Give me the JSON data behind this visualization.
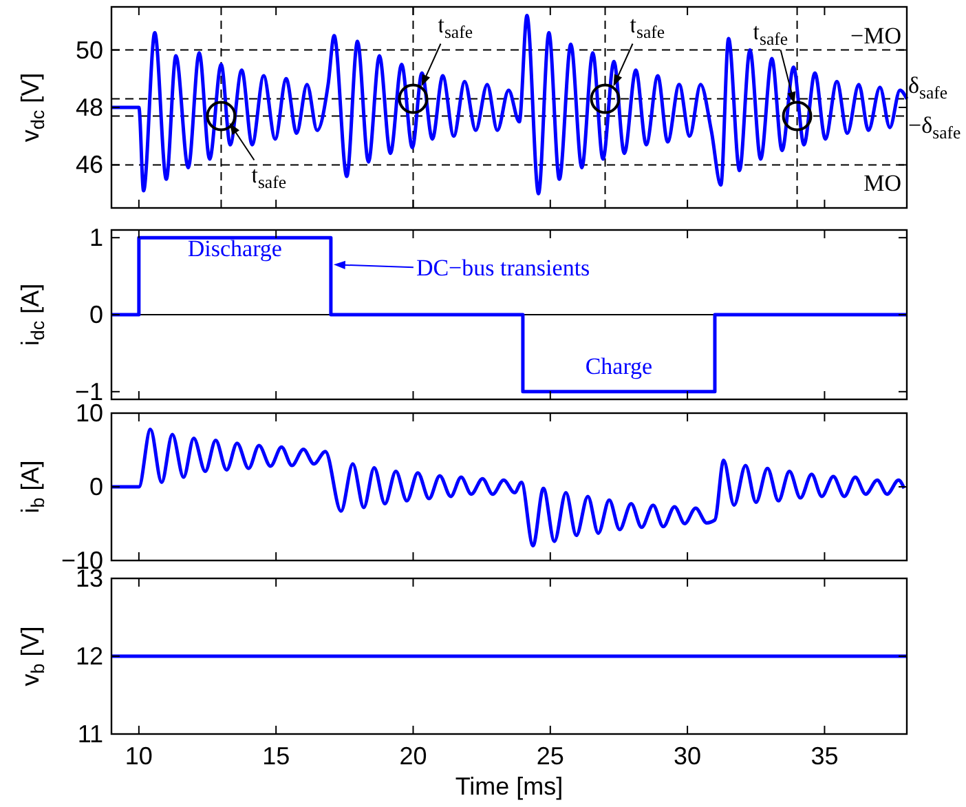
{
  "chart_data": [
    {
      "type": "line",
      "ylabel": "v$_{dc}$ [V]",
      "xlim": [
        9,
        38
      ],
      "xticks": [
        10,
        15,
        20,
        25,
        30,
        35
      ],
      "ylim": [
        44.5,
        51.5
      ],
      "yticks": [
        46,
        48,
        50
      ],
      "tick_labels": "y",
      "line_style": "solid",
      "series": [
        {
          "color": "#0000ff",
          "x": [
            9,
            10,
            10.17,
            10.58,
            11.0,
            11.35,
            11.8,
            12.2,
            12.58,
            13.0,
            13.33,
            13.75,
            14.13,
            14.55,
            14.97,
            15.37,
            15.75,
            16.13,
            16.5,
            16.9,
            17.12,
            17.58,
            17.97,
            18.37,
            18.77,
            19.17,
            19.58,
            19.97,
            20.32,
            20.7,
            21.08,
            21.48,
            21.88,
            22.28,
            22.7,
            23.07,
            23.48,
            23.87,
            24.15,
            24.57,
            24.95,
            25.33,
            25.75,
            26.15,
            26.55,
            26.92,
            27.32,
            27.7,
            28.12,
            28.5,
            28.92,
            29.28,
            29.7,
            30.08,
            30.48,
            30.87,
            31.22,
            31.5,
            31.9,
            32.28,
            32.67,
            33.08,
            33.45,
            33.87,
            34.25,
            34.65,
            35.03,
            35.45,
            35.83,
            36.25,
            36.6,
            37.02,
            37.38,
            37.75,
            38
          ],
          "values": [
            48,
            48,
            45.1,
            50.6,
            45.5,
            49.8,
            45.9,
            49.9,
            46.2,
            49.5,
            46.7,
            49.3,
            46.7,
            49.1,
            46.9,
            49.0,
            47.1,
            48.8,
            47.2,
            48.8,
            50.5,
            45.6,
            50.3,
            46.1,
            49.8,
            46.4,
            49.5,
            46.6,
            49.2,
            46.9,
            49.1,
            47.0,
            48.9,
            47.2,
            48.8,
            47.2,
            48.6,
            47.5,
            51.2,
            45.0,
            50.6,
            45.5,
            50.2,
            45.9,
            49.9,
            46.2,
            49.6,
            46.4,
            49.3,
            46.7,
            49.1,
            46.8,
            48.8,
            47.0,
            48.8,
            47.2,
            45.3,
            50.4,
            45.8,
            50.0,
            46.2,
            49.7,
            46.5,
            49.4,
            46.7,
            49.2,
            46.9,
            48.9,
            47.1,
            48.8,
            47.2,
            48.7,
            47.3,
            48.6,
            48.3
          ]
        }
      ],
      "ref_lines": [
        {
          "axis": "y",
          "value": 50,
          "label": "−MO",
          "line_style": "dashed",
          "color": "#000000"
        },
        {
          "axis": "y",
          "value": 48.3,
          "label": "δ$_{safe}$",
          "line_style": "dashed",
          "color": "#000000"
        },
        {
          "axis": "y",
          "value": 47.7,
          "label": "−δ$_{safe}$",
          "line_style": "dashed",
          "color": "#000000"
        },
        {
          "axis": "y",
          "value": 46,
          "label": "MO",
          "line_style": "dashed",
          "color": "#000000"
        },
        {
          "axis": "x",
          "value": 13,
          "line_style": "dashed",
          "color": "#000000"
        },
        {
          "axis": "x",
          "value": 20,
          "line_style": "dashed",
          "color": "#000000"
        },
        {
          "axis": "x",
          "value": 27,
          "line_style": "dashed",
          "color": "#000000"
        },
        {
          "axis": "x",
          "value": 34,
          "line_style": "dashed",
          "color": "#000000"
        }
      ],
      "annotations": [
        {
          "text": "t$_{safe}$",
          "x": 13,
          "y": 47.7
        },
        {
          "text": "t$_{safe}$",
          "x": 20,
          "y": 48.3
        },
        {
          "text": "t$_{safe}$",
          "x": 27,
          "y": 48.3
        },
        {
          "text": "t$_{safe}$",
          "x": 34,
          "y": 47.7
        }
      ]
    },
    {
      "type": "line",
      "ylabel": "i$_{dc}$ [A]",
      "xlim": [
        9,
        38
      ],
      "xticks": [
        10,
        15,
        20,
        25,
        30,
        35
      ],
      "ylim": [
        -1.1,
        1.1
      ],
      "yticks": [
        -1,
        0,
        1
      ],
      "tick_labels": "y",
      "line_style": "solid",
      "series": [
        {
          "color": "#0000ff",
          "x": [
            9,
            10,
            10,
            17,
            17,
            24,
            24,
            31,
            31,
            38
          ],
          "values": [
            0,
            0,
            1,
            1,
            0,
            0,
            -1,
            -1,
            0,
            0
          ]
        }
      ],
      "ref_lines": [
        {
          "axis": "y",
          "value": 0,
          "color": "#000000"
        }
      ],
      "annotations": [
        "Discharge",
        "DC−bus transients",
        "Charge"
      ]
    },
    {
      "type": "line",
      "ylabel": "i$_{b}$ [A]",
      "xlim": [
        9,
        38
      ],
      "xticks": [
        10,
        15,
        20,
        25,
        30,
        35
      ],
      "ylim": [
        -10,
        10
      ],
      "yticks": [
        -10,
        0,
        10
      ],
      "tick_labels": "y",
      "line_style": "solid",
      "series": [
        {
          "color": "#0000ff",
          "x": [
            9,
            10,
            10.42,
            10.83,
            11.22,
            11.63,
            12.0,
            12.42,
            12.8,
            13.2,
            13.58,
            14.0,
            14.38,
            14.8,
            15.2,
            15.58,
            16.0,
            16.38,
            16.8,
            17.37,
            17.8,
            18.2,
            18.58,
            18.97,
            19.37,
            19.77,
            20.17,
            20.58,
            20.97,
            21.37,
            21.75,
            22.12,
            22.53,
            22.9,
            23.3,
            23.7,
            23.95,
            24.37,
            24.75,
            25.15,
            25.57,
            25.95,
            26.37,
            26.75,
            27.15,
            27.53,
            27.95,
            28.33,
            28.75,
            29.12,
            29.53,
            29.9,
            30.3,
            30.7,
            31.0,
            31.32,
            31.7,
            32.12,
            32.5,
            32.92,
            33.32,
            33.72,
            34.12,
            34.53,
            34.9,
            35.32,
            35.72,
            36.12,
            36.5,
            36.92,
            37.28,
            37.7,
            37.9
          ],
          "values": [
            0,
            0,
            7.8,
            0.6,
            7.1,
            1.3,
            6.6,
            2.1,
            6.3,
            2.3,
            5.9,
            2.5,
            5.6,
            2.8,
            5.4,
            2.9,
            5.1,
            3.1,
            4.8,
            -3.3,
            3.1,
            -2.8,
            2.6,
            -2.3,
            2.1,
            -1.9,
            1.9,
            -1.6,
            1.5,
            -1.3,
            1.3,
            -1.0,
            1.1,
            -1.0,
            0.9,
            -0.8,
            0.6,
            -8.0,
            -0.2,
            -7.4,
            -0.8,
            -6.6,
            -1.3,
            -6.3,
            -1.8,
            -5.8,
            -2.3,
            -5.5,
            -2.5,
            -5.4,
            -2.7,
            -5.0,
            -2.9,
            -4.9,
            -4.5,
            3.6,
            -2.5,
            2.9,
            -2.1,
            2.5,
            -1.9,
            2.1,
            -1.5,
            1.7,
            -1.3,
            1.4,
            -1.3,
            1.3,
            -1.0,
            0.9,
            -1.0,
            0.9,
            -0.2
          ]
        }
      ]
    },
    {
      "type": "line",
      "ylabel": "v$_{b}$ [V]",
      "xlabel": "Time [ms]",
      "xlim": [
        9,
        38
      ],
      "xticks": [
        10,
        15,
        20,
        25,
        30,
        35
      ],
      "ylim": [
        11,
        13
      ],
      "yticks": [
        11,
        12,
        13
      ],
      "line_style": "solid",
      "series": [
        {
          "color": "#0000ff",
          "x": [
            9,
            38
          ],
          "values": [
            12,
            12
          ]
        }
      ]
    }
  ]
}
